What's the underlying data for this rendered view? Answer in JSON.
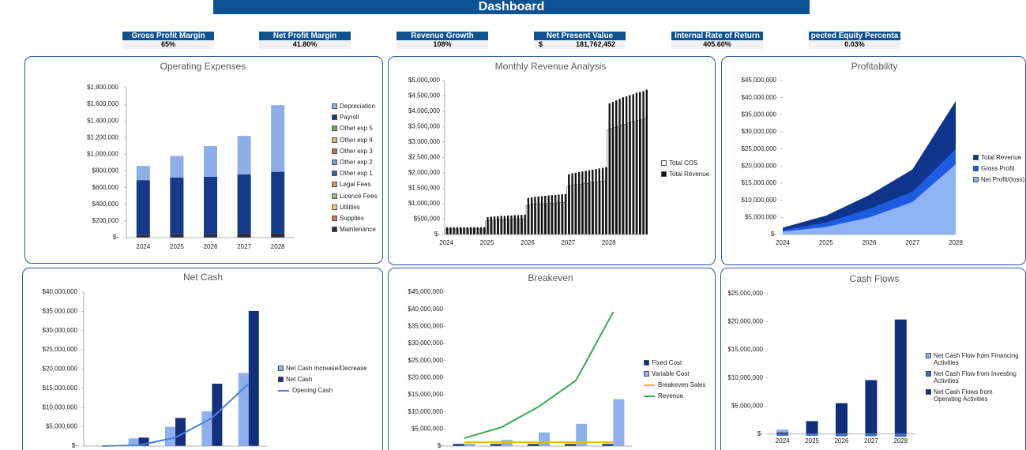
{
  "header": {
    "title": "Dashboard"
  },
  "kpis": [
    {
      "label": "Gross Profit Margin",
      "value": "65%"
    },
    {
      "label": "Net Profit Margin",
      "value": "41.80%"
    },
    {
      "label": "Revenue Growth",
      "value": "108%"
    },
    {
      "label": "Net Present Value",
      "currency": "$",
      "value": "181,762,452"
    },
    {
      "label": "Internal Rate of Return",
      "value": "405.60%"
    },
    {
      "label": "pected Equity Percenta",
      "value": "0.03%"
    }
  ],
  "chart_data": [
    {
      "type": "bar",
      "stacked": true,
      "title": "Operating Expenses",
      "categories": [
        "2024",
        "2025",
        "2026",
        "2027",
        "2028"
      ],
      "ylim": [
        0,
        1800000
      ],
      "yticks": [
        {
          "value": 0,
          "label": "$-"
        },
        {
          "value": 200000,
          "label": "$200,000"
        },
        {
          "value": 400000,
          "label": "$400,000"
        },
        {
          "value": 600000,
          "label": "$600,000"
        },
        {
          "value": 800000,
          "label": "$800,000"
        },
        {
          "value": 1000000,
          "label": "$1,000,000"
        },
        {
          "value": 1200000,
          "label": "$1,200,000"
        },
        {
          "value": 1400000,
          "label": "$1,400,000"
        },
        {
          "value": 1600000,
          "label": "$1,600,000"
        },
        {
          "value": 1800000,
          "label": "$1,800,000"
        }
      ],
      "series": [
        {
          "name": "Depreciation",
          "color": "#8eaee8",
          "values": [
            170000,
            260000,
            370000,
            460000,
            800000
          ]
        },
        {
          "name": "Payroll",
          "color": "#163a8a",
          "values": [
            660000,
            680000,
            690000,
            710000,
            740000
          ]
        },
        {
          "name": "Other exp 5",
          "color": "#7aa56a",
          "values": [
            0,
            0,
            0,
            0,
            0
          ]
        },
        {
          "name": "Other exp 4",
          "color": "#e0b36b",
          "values": [
            0,
            0,
            0,
            0,
            0
          ]
        },
        {
          "name": "Other exp 3",
          "color": "#c06a4a",
          "values": [
            0,
            0,
            0,
            0,
            0
          ]
        },
        {
          "name": "Other exp 2",
          "color": "#6f9fd8",
          "values": [
            0,
            0,
            0,
            0,
            0
          ]
        },
        {
          "name": "Other exp 1",
          "color": "#3c5fa8",
          "values": [
            0,
            0,
            0,
            0,
            0
          ]
        },
        {
          "name": "Legal Fees",
          "color": "#e38a4f",
          "values": [
            0,
            0,
            0,
            0,
            0
          ]
        },
        {
          "name": "Licence Fees",
          "color": "#8cc27a",
          "values": [
            0,
            0,
            0,
            0,
            0
          ]
        },
        {
          "name": "Utilities",
          "color": "#f2c86b",
          "values": [
            0,
            0,
            0,
            0,
            0
          ]
        },
        {
          "name": "Supplies",
          "color": "#d46f5a",
          "values": [
            0,
            0,
            0,
            0,
            0
          ]
        },
        {
          "name": "Maintenance",
          "color": "#2b2b3b",
          "values": [
            30000,
            40000,
            40000,
            50000,
            50000
          ]
        }
      ]
    },
    {
      "type": "bar",
      "title": "Monthly Revenue Analysis",
      "categories": [
        "2024",
        null,
        null,
        null,
        null,
        null,
        null,
        null,
        null,
        null,
        null,
        null,
        "2025",
        null,
        null,
        null,
        null,
        null,
        null,
        null,
        null,
        null,
        null,
        null,
        "2026",
        null,
        null,
        null,
        null,
        null,
        null,
        null,
        null,
        null,
        null,
        null,
        "2027",
        null,
        null,
        null,
        null,
        null,
        null,
        null,
        null,
        null,
        null,
        null,
        "2028",
        null,
        null,
        null,
        null,
        null,
        null,
        null,
        null,
        null,
        null,
        null
      ],
      "ylim": [
        0,
        5000000
      ],
      "yticks": [
        {
          "value": 0,
          "label": "$-"
        },
        {
          "value": 500000,
          "label": "$500,000"
        },
        {
          "value": 1000000,
          "label": "$1,000,000"
        },
        {
          "value": 1500000,
          "label": "$1,500,000"
        },
        {
          "value": 2000000,
          "label": "$2,000,000"
        },
        {
          "value": 2500000,
          "label": "$2,500,000"
        },
        {
          "value": 3000000,
          "label": "$3,000,000"
        },
        {
          "value": 3500000,
          "label": "$3,500,000"
        },
        {
          "value": 4000000,
          "label": "$4,000,000"
        },
        {
          "value": 4500000,
          "label": "$4,500,000"
        },
        {
          "value": 5000000,
          "label": "$5,000,000"
        }
      ],
      "series": [
        {
          "name": "Total COS",
          "color": "#ffffff",
          "values": [
            180000,
            180000,
            180000,
            180000,
            180000,
            180000,
            180000,
            180000,
            180000,
            180000,
            180000,
            180000,
            450000,
            460000,
            460000,
            470000,
            480000,
            480000,
            490000,
            490000,
            500000,
            500000,
            500000,
            510000,
            940000,
            960000,
            980000,
            980000,
            990000,
            1000000,
            1010000,
            1020000,
            1020000,
            1030000,
            1040000,
            1050000,
            1560000,
            1580000,
            1600000,
            1620000,
            1630000,
            1650000,
            1660000,
            1680000,
            1700000,
            1710000,
            1730000,
            1740000,
            3400000,
            3440000,
            3480000,
            3520000,
            3560000,
            3580000,
            3620000,
            3640000,
            3680000,
            3700000,
            3720000,
            3760000
          ]
        },
        {
          "name": "Total Revenue",
          "color": "#111111",
          "values": [
            230000,
            230000,
            230000,
            230000,
            230000,
            230000,
            230000,
            230000,
            230000,
            230000,
            230000,
            230000,
            560000,
            570000,
            580000,
            590000,
            600000,
            600000,
            610000,
            610000,
            620000,
            620000,
            630000,
            640000,
            1180000,
            1200000,
            1220000,
            1230000,
            1240000,
            1250000,
            1260000,
            1270000,
            1280000,
            1290000,
            1300000,
            1310000,
            1950000,
            1980000,
            2000000,
            2020000,
            2040000,
            2060000,
            2080000,
            2100000,
            2120000,
            2140000,
            2160000,
            2180000,
            4250000,
            4300000,
            4350000,
            4400000,
            4450000,
            4480000,
            4520000,
            4550000,
            4600000,
            4620000,
            4650000,
            4700000
          ]
        }
      ]
    },
    {
      "type": "area",
      "title": "Profitability",
      "categories": [
        "2024",
        "2025",
        "2026",
        "2027",
        "2028"
      ],
      "ylim": [
        0,
        45000000
      ],
      "yticks": [
        {
          "value": 0,
          "label": "$-"
        },
        {
          "value": 5000000,
          "label": "$5,000,000"
        },
        {
          "value": 10000000,
          "label": "$10,000,000"
        },
        {
          "value": 15000000,
          "label": "$15,000,000"
        },
        {
          "value": 20000000,
          "label": "$20,000,000"
        },
        {
          "value": 25000000,
          "label": "$25,000,000"
        },
        {
          "value": 30000000,
          "label": "$30,000,000"
        },
        {
          "value": 35000000,
          "label": "$35,000,000"
        },
        {
          "value": 40000000,
          "label": "$40,000,000"
        },
        {
          "value": 45000000,
          "label": "$45,000,000"
        }
      ],
      "series": [
        {
          "name": "Total Revenue",
          "color": "#0e348c",
          "values": [
            2000000,
            5500000,
            11500000,
            19000000,
            39000000
          ]
        },
        {
          "name": "Gross Profit",
          "color": "#1d5ce0",
          "values": [
            1300000,
            3500000,
            7500000,
            12500000,
            25000000
          ]
        },
        {
          "name": "Net Profit/(loss)",
          "color": "#8fb4f5",
          "values": [
            800000,
            2200000,
            5000000,
            9500000,
            20500000
          ]
        }
      ]
    },
    {
      "type": "combo",
      "title": "Net Cash",
      "ylim": [
        0,
        40000000
      ],
      "yticks": [
        {
          "value": 0,
          "label": "$-"
        },
        {
          "value": 5000000,
          "label": "$5,000,000"
        },
        {
          "value": 10000000,
          "label": "$10,000,000"
        },
        {
          "value": 15000000,
          "label": "$15,000,000"
        },
        {
          "value": 20000000,
          "label": "$20,000,000"
        },
        {
          "value": 25000000,
          "label": "$25,000,000"
        },
        {
          "value": 30000000,
          "label": "$30,000,000"
        },
        {
          "value": 35000000,
          "label": "$35,000,000"
        },
        {
          "value": 40000000,
          "label": "$40,000,000"
        }
      ],
      "series": [
        {
          "name": "Net Cash Increase/Decrease",
          "color": "#8fb0ee",
          "values": [
            100000,
            2000000,
            5000000,
            9000000,
            19000000
          ]
        },
        {
          "name": "Net Cash",
          "color": "#13307d",
          "values": [
            200000,
            2200000,
            7300000,
            16200000,
            35100000
          ]
        },
        {
          "name": "Opening Cash",
          "type": "line",
          "color": "#4a7ee0",
          "values": [
            0,
            200000,
            2200000,
            7300000,
            16200000
          ]
        }
      ]
    },
    {
      "type": "combo",
      "title": "Breakeven",
      "ylim": [
        0,
        45000000
      ],
      "yticks": [
        {
          "value": 0,
          "label": "$-"
        },
        {
          "value": 5000000,
          "label": "$5,000,000"
        },
        {
          "value": 10000000,
          "label": "$10,000,000"
        },
        {
          "value": 15000000,
          "label": "$15,000,000"
        },
        {
          "value": 20000000,
          "label": "$20,000,000"
        },
        {
          "value": 25000000,
          "label": "$25,000,000"
        },
        {
          "value": 30000000,
          "label": "$30,000,000"
        },
        {
          "value": 35000000,
          "label": "$35,000,000"
        },
        {
          "value": 40000000,
          "label": "$40,000,000"
        },
        {
          "value": 45000000,
          "label": "$45,000,000"
        }
      ],
      "series": [
        {
          "name": "Fixed Cost",
          "color": "#13307d",
          "values": [
            600000,
            600000,
            600000,
            600000,
            600000
          ]
        },
        {
          "name": "Variable Cost",
          "color": "#8fb0ee",
          "values": [
            700000,
            1800000,
            4000000,
            6500000,
            13700000
          ]
        },
        {
          "name": "Breakeven Sales",
          "type": "line",
          "color": "#f0b400",
          "values": [
            1100000,
            1100000,
            1100000,
            1100000,
            1100000
          ]
        },
        {
          "name": "Revenue",
          "type": "line",
          "color": "#3aa655",
          "values": [
            2300000,
            5500000,
            11500000,
            19200000,
            39200000
          ]
        }
      ]
    },
    {
      "type": "bar",
      "stacked": true,
      "title": "Cash Flows",
      "categories": [
        "2024",
        "2025",
        "2026",
        "2027",
        "2028"
      ],
      "ylim": [
        -2000000,
        25000000
      ],
      "yticks": [
        {
          "value": 0,
          "label": "$-"
        },
        {
          "value": 5000000,
          "label": "$5,000,000"
        },
        {
          "value": 10000000,
          "label": "$10,000,000"
        },
        {
          "value": 15000000,
          "label": "$15,000,000"
        },
        {
          "value": 20000000,
          "label": "$20,000,000"
        },
        {
          "value": 25000000,
          "label": "$25,000,000"
        }
      ],
      "series": [
        {
          "name": "Net Cash Flow from Financing Activities",
          "color": "#8fb0ee",
          "values": [
            500000,
            0,
            0,
            0,
            0
          ]
        },
        {
          "name": "Net Cash Flow from Investing Activities",
          "color": "#2f6bd0",
          "values": [
            -300000,
            -300000,
            -400000,
            -400000,
            -500000
          ]
        },
        {
          "name": "Net Cash Flows from Operating Activities",
          "color": "#0f2f7a",
          "values": [
            300000,
            2300000,
            5500000,
            9600000,
            20400000
          ]
        }
      ]
    }
  ]
}
